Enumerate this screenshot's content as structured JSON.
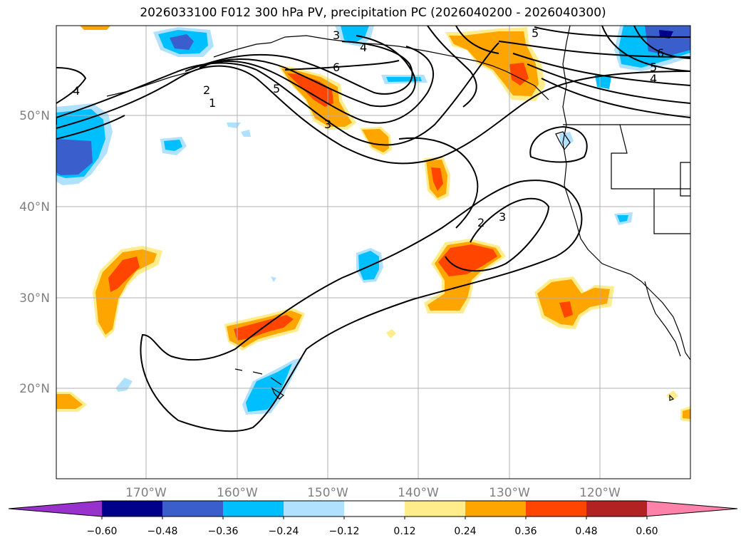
{
  "title": "2026033100 F012 300 hPa PV, precipitation PC (2026040200 - 2026040300)",
  "lat_labels": [
    "50°N",
    "40°N",
    "30°N",
    "20°N"
  ],
  "lon_labels": [
    "170°W",
    "160°W",
    "150°W",
    "140°W",
    "130°W",
    "120°W"
  ],
  "colorbar": {
    "ticks": [
      "−0.60",
      "−0.48",
      "−0.36",
      "−0.24",
      "−0.12",
      "0.12",
      "0.24",
      "0.36",
      "0.48",
      "0.60"
    ],
    "colors": [
      "#9932cc",
      "#00008b",
      "#3a5fcd",
      "#00bfff",
      "#b0e2ff",
      "#ffffff",
      "#ffec8b",
      "#ffa500",
      "#ff4500",
      "#b22222",
      "#ff82ab"
    ]
  },
  "contour_labels": {
    "c1": "1",
    "c2a": "2",
    "c2b": "2",
    "c3a": "3",
    "c3b": "3",
    "c3c": "3",
    "c4a": "4",
    "c4b": "4",
    "c4c": "4",
    "c5a": "5",
    "c5b": "5",
    "c5c": "5",
    "c6a": "6",
    "c6b": "6"
  }
}
